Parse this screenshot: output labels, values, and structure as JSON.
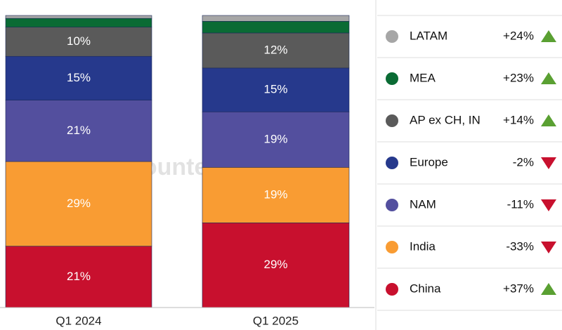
{
  "chart_data": {
    "type": "stacked_bar",
    "categories": [
      "Q1 2024",
      "Q1 2025"
    ],
    "ylim": [
      0,
      100
    ],
    "watermark": "Counterpoint",
    "series": [
      {
        "name": "China",
        "color": "#c8102e",
        "values": [
          21,
          29
        ],
        "value_labels": [
          "21%",
          "29%"
        ],
        "growth": 37,
        "growth_label": "+37%"
      },
      {
        "name": "India",
        "color": "#f99c33",
        "values": [
          29,
          19
        ],
        "value_labels": [
          "29%",
          "19%"
        ],
        "growth": -33,
        "growth_label": "-33%"
      },
      {
        "name": "NAM",
        "color": "#534f9e",
        "values": [
          21,
          19
        ],
        "value_labels": [
          "21%",
          "19%"
        ],
        "growth": -11,
        "growth_label": "-11%"
      },
      {
        "name": "Europe",
        "color": "#26398c",
        "values": [
          15,
          15
        ],
        "value_labels": [
          "15%",
          "15%"
        ],
        "growth": -2,
        "growth_label": "-2%"
      },
      {
        "name": "AP ex CH, IN",
        "color": "#5a5a5a",
        "values": [
          10,
          12
        ],
        "value_labels": [
          "10%",
          "12%"
        ],
        "growth": 14,
        "growth_label": "+14%"
      },
      {
        "name": "MEA",
        "color": "#0a6b34",
        "values": [
          3,
          4
        ],
        "value_labels": [
          null,
          null
        ],
        "growth": 23,
        "growth_label": "+23%"
      },
      {
        "name": "LATAM",
        "color": "#a6a6a6",
        "values": [
          1,
          2
        ],
        "value_labels": [
          null,
          null
        ],
        "growth": 24,
        "growth_label": "+24%"
      }
    ]
  }
}
